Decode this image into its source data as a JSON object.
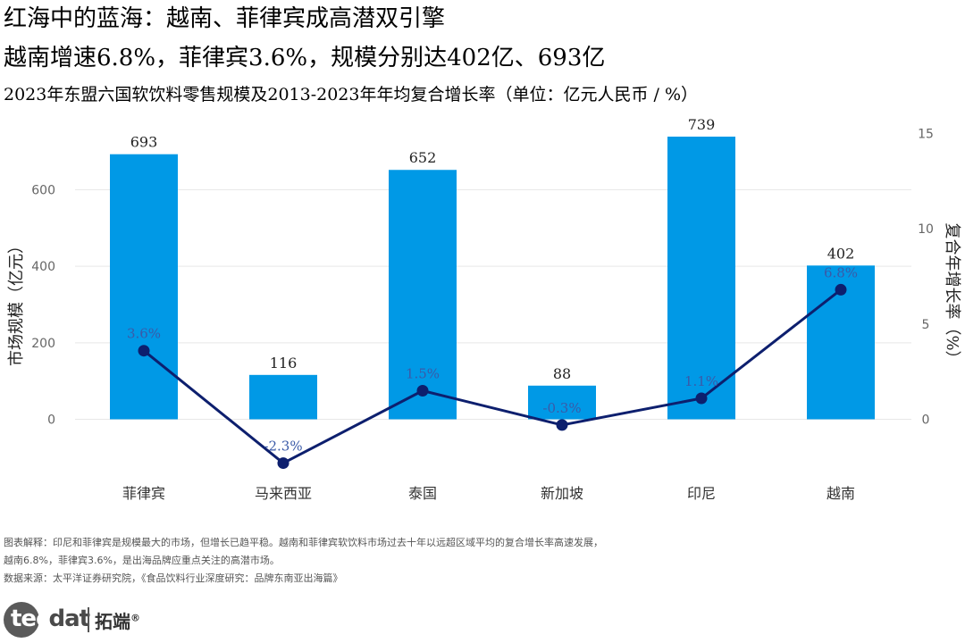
{
  "titles": {
    "line1": "红海中的蓝海：越南、菲律宾成高潜双引擎",
    "line2": "越南增速6.8%，菲律宾3.6%，规模分别达402亿、693亿",
    "line3": "2023年东盟六国软饮料零售规模及2013-2023年年均复合增长率（单位：亿元人民币 / %）"
  },
  "chart_data": {
    "type": "bar",
    "categories": [
      "菲律宾",
      "马来西亚",
      "泰国",
      "新加坡",
      "印尼",
      "越南"
    ],
    "series": [
      {
        "name": "",
        "type": "bar",
        "axis": "left",
        "values": [
          693,
          116,
          652,
          88,
          739,
          402
        ],
        "labels": [
          "693",
          "116",
          "652",
          "88",
          "739",
          "402"
        ]
      },
      {
        "name": "",
        "type": "line",
        "axis": "right",
        "values": [
          3.6,
          -2.3,
          1.5,
          -0.3,
          1.1,
          6.8
        ],
        "labels": [
          "3.6%",
          "-2.3%",
          "1.5%",
          "-0.3%",
          "1.1%",
          "6.8%"
        ]
      }
    ],
    "ylabel": "市场规模（亿元）",
    "y2label": "复合年增长率（%）",
    "ylim": [
      -150,
      750
    ],
    "y2lim": [
      -3.0,
      15.0
    ],
    "yticks": [
      0,
      200,
      400,
      600
    ],
    "y2ticks": [
      0,
      5,
      10,
      15
    ],
    "grid": true,
    "colors": {
      "bar": "#0099e6",
      "line": "#0d1f6e",
      "grid": "#e8e8e8",
      "tick": "#666666"
    }
  },
  "notes": {
    "line1": "图表解释：印尼和菲律宾是规模最大的市场，但增长已趋平稳。越南和菲律宾软饮料市场过去十年以远超区域平均的复合增长率高速发展，",
    "line2": "越南6.8%，菲律宾3.6%，是出海品牌应重点关注的高潜市场。",
    "line3": "数据来源：太平洋证券研究院，《食品饮料行业深度研究：品牌东南亚出海篇》"
  },
  "logo": {
    "part1": "tec",
    "part2": "dat",
    "cn": "拓端",
    "mark": "®"
  }
}
